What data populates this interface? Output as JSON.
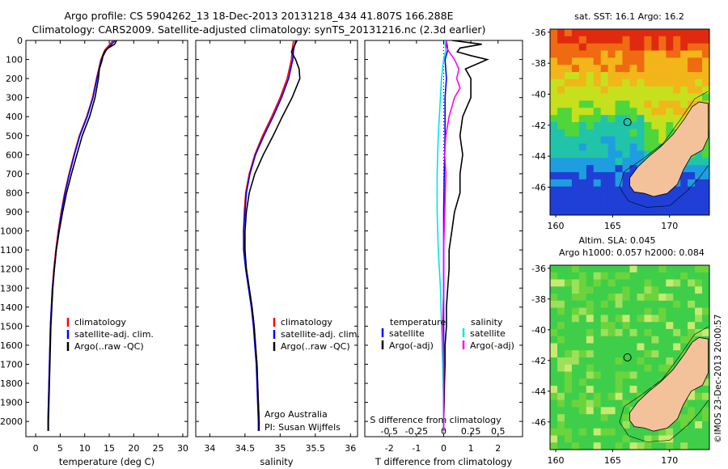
{
  "header": {
    "line1": "Argo profile: CS 5904262_13 18-Dec-2013 20131218_434 41.807S 166.288E",
    "line2": "Climatology: CARS2009. Satellite-adjusted climatology: synTS_20131216.nc (2.3d earlier)"
  },
  "depth_ticks": [
    "0",
    "100",
    "200",
    "300",
    "400",
    "500",
    "600",
    "700",
    "800",
    "900",
    "1000",
    "1100",
    "1200",
    "1300",
    "1400",
    "1500",
    "1600",
    "1700",
    "1800",
    "1900",
    "2000"
  ],
  "credits": {
    "org": "Argo Australia",
    "pi": "PI: Susan Wijffels"
  },
  "stamp": "©IMOS 23-Dec-2013 20:00:57",
  "colors": {
    "climatology": "#ff0000",
    "satellite": "#0000ff",
    "argo": "#000000",
    "sat_sal": "#00e6e6",
    "argo_sal": "#ff00ff",
    "land": "#f4c29a"
  },
  "chart_data": [
    {
      "type": "line",
      "id": "temperature",
      "xlabel": "temperature (deg C)",
      "x_ticks": [
        "0",
        "5",
        "10",
        "15",
        "20",
        "25",
        "30"
      ],
      "xlim": [
        -2,
        31
      ],
      "ylim": [
        2080,
        0
      ],
      "legend": [
        "climatology",
        "satellite-adj. clim.",
        "Argo(..raw -QC)"
      ],
      "series": [
        {
          "name": "climatology",
          "depth": [
            0,
            50,
            100,
            200,
            300,
            400,
            500,
            600,
            700,
            800,
            900,
            1000,
            1100,
            1200,
            1300,
            1400,
            1500,
            1600,
            1700,
            1800,
            1900,
            2000,
            2050
          ],
          "values": [
            15.8,
            14.1,
            13.3,
            12.4,
            11.6,
            10.4,
            8.9,
            7.8,
            6.8,
            5.9,
            5.2,
            4.6,
            4.1,
            3.7,
            3.4,
            3.2,
            3.0,
            2.9,
            2.8,
            2.7,
            2.6,
            2.5,
            2.5
          ]
        },
        {
          "name": "satellite-adj. clim.",
          "depth": [
            0,
            50,
            100,
            200,
            300,
            400,
            500,
            600,
            700,
            800,
            900,
            1000,
            1100,
            1200,
            1300,
            1400,
            1500,
            1600,
            1700,
            1800,
            1900,
            2000,
            2050
          ],
          "values": [
            16.2,
            14.4,
            13.4,
            12.5,
            11.7,
            10.5,
            9.0,
            7.9,
            6.9,
            6.0,
            5.3,
            4.7,
            4.2,
            3.8,
            3.4,
            3.2,
            3.0,
            2.9,
            2.8,
            2.7,
            2.6,
            2.5,
            2.5
          ]
        },
        {
          "name": "Argo(..raw -QC)",
          "depth": [
            0,
            20,
            40,
            60,
            80,
            100,
            150,
            200,
            300,
            400,
            500,
            600,
            700,
            800,
            900,
            1000,
            1100,
            1200,
            1300,
            1400,
            1500,
            1600,
            1700,
            1800,
            1900,
            2000,
            2050
          ],
          "values": [
            16.5,
            16.1,
            14.8,
            14.0,
            13.7,
            13.6,
            13.0,
            12.8,
            12.1,
            11.0,
            9.5,
            8.4,
            7.3,
            6.3,
            5.5,
            4.8,
            4.2,
            3.8,
            3.5,
            3.3,
            3.1,
            3.0,
            2.9,
            2.8,
            2.7,
            2.6,
            2.6
          ]
        }
      ]
    },
    {
      "type": "line",
      "id": "salinity",
      "xlabel": "salinity",
      "x_ticks": [
        "34",
        "34.5",
        "35",
        "35.5",
        "36"
      ],
      "xlim": [
        33.8,
        36.1
      ],
      "ylim": [
        2080,
        0
      ],
      "legend": [
        "climatology",
        "satellite-adj. clim.",
        "Argo(..raw -QC)"
      ],
      "series": [
        {
          "name": "climatology",
          "depth": [
            0,
            50,
            100,
            200,
            300,
            400,
            500,
            600,
            700,
            800,
            900,
            1000,
            1100,
            1200,
            1300,
            1400,
            1500,
            1600,
            1700,
            1800,
            1900,
            2000,
            2050
          ],
          "values": [
            35.19,
            35.17,
            35.16,
            35.1,
            35.0,
            34.88,
            34.75,
            34.64,
            34.56,
            34.51,
            34.49,
            34.48,
            34.49,
            34.52,
            34.56,
            34.6,
            34.63,
            34.65,
            34.67,
            34.68,
            34.69,
            34.7,
            34.7
          ]
        },
        {
          "name": "satellite-adj. clim.",
          "depth": [
            0,
            50,
            100,
            200,
            300,
            400,
            500,
            600,
            700,
            800,
            900,
            1000,
            1100,
            1200,
            1300,
            1400,
            1500,
            1600,
            1700,
            1800,
            1900,
            2000,
            2050
          ],
          "values": [
            35.22,
            35.19,
            35.18,
            35.12,
            35.02,
            34.9,
            34.77,
            34.65,
            34.57,
            34.52,
            34.5,
            34.48,
            34.48,
            34.51,
            34.55,
            34.59,
            34.62,
            34.64,
            34.66,
            34.67,
            34.68,
            34.69,
            34.69
          ]
        },
        {
          "name": "Argo(..raw -QC)",
          "depth": [
            0,
            30,
            60,
            100,
            150,
            200,
            300,
            400,
            500,
            600,
            700,
            800,
            900,
            1000,
            1100,
            1200,
            1300,
            1400,
            1500,
            1600,
            1700,
            1800,
            1900,
            2000,
            2050
          ],
          "values": [
            35.24,
            35.2,
            35.16,
            35.22,
            35.27,
            35.28,
            35.17,
            35.03,
            34.9,
            34.76,
            34.64,
            34.56,
            34.52,
            34.5,
            34.5,
            34.52,
            34.56,
            34.6,
            34.63,
            34.65,
            34.67,
            34.68,
            34.69,
            34.7,
            34.7
          ]
        }
      ]
    },
    {
      "type": "line",
      "id": "differences",
      "xlabel": "T difference from climatology",
      "x2label": "S difference from climatology",
      "x_ticks": [
        "-2",
        "-1",
        "0",
        "1",
        "2"
      ],
      "x2_ticks": [
        "-0.5",
        "-0.25",
        "0",
        "0.25",
        "0.5"
      ],
      "xlim": [
        -2.9,
        2.9
      ],
      "ylim": [
        2080,
        0
      ],
      "legend_t": [
        "temperature",
        "satellite",
        "Argo(-adj)"
      ],
      "legend_s": [
        "salinity",
        "satellite",
        "Argo(-adj)"
      ],
      "series": [
        {
          "name": "satellite",
          "depth": [
            0,
            50,
            100,
            200,
            300,
            500,
            700,
            900,
            1100,
            1300,
            1500,
            1700,
            1900,
            2050
          ],
          "values": [
            0.1,
            0.15,
            0.05,
            0.1,
            0.05,
            0.05,
            0.02,
            0.0,
            0.0,
            0.0,
            0.0,
            0.0,
            0.0,
            0.0
          ]
        },
        {
          "name": "Argo(-adj)",
          "depth": [
            0,
            20,
            40,
            60,
            80,
            100,
            150,
            200,
            300,
            400,
            500,
            600,
            700,
            800,
            900,
            1000,
            1100,
            1200,
            1300,
            1400,
            1500,
            1600,
            1700,
            1800,
            1900,
            2000,
            2050
          ],
          "values": [
            0.3,
            1.4,
            0.6,
            0.5,
            1.0,
            1.6,
            0.8,
            1.0,
            1.0,
            0.7,
            0.6,
            0.7,
            0.6,
            0.6,
            0.4,
            0.3,
            0.2,
            0.2,
            0.15,
            0.1,
            0.1,
            0.05,
            0.05,
            0.03,
            0.02,
            0.0,
            0.0
          ]
        },
        {
          "name": "satellite",
          "depth": [
            0,
            50,
            100,
            200,
            300,
            500,
            700,
            900,
            1100,
            1300,
            1500,
            1700,
            1900,
            2050
          ],
          "values": [
            0.01,
            0.02,
            0.0,
            -0.02,
            -0.03,
            -0.05,
            -0.06,
            -0.06,
            -0.05,
            -0.03,
            -0.02,
            -0.01,
            0.0,
            0.0
          ]
        },
        {
          "name": "Argo(-adj)",
          "depth": [
            0,
            30,
            60,
            100,
            150,
            200,
            250,
            300,
            400,
            500,
            600,
            700,
            900,
            1100,
            1300,
            1500,
            1700,
            1900,
            2050
          ],
          "values": [
            0.03,
            0.02,
            0.05,
            0.1,
            0.14,
            0.12,
            0.15,
            0.1,
            0.05,
            0.02,
            0.01,
            0.02,
            0.01,
            0.0,
            0.0,
            -0.01,
            0.0,
            0.0,
            0.0
          ]
        }
      ]
    },
    {
      "type": "heatmap",
      "id": "sst-map",
      "title": "sat. SST: 16.1  Argo: 16.2",
      "x_ticks": [
        "160",
        "165",
        "170"
      ],
      "y_ticks": [
        "-36",
        "-38",
        "-40",
        "-42",
        "-44",
        "-46"
      ],
      "xlim": [
        159.5,
        173.5
      ],
      "ylim": [
        -47.8,
        -35.8
      ],
      "float_position": {
        "lon": 166.3,
        "lat": -41.8
      }
    },
    {
      "type": "heatmap",
      "id": "sla-map",
      "title": "Altim. SLA: 0.045",
      "subtitle": "Argo h1000: 0.057  h2000: 0.084",
      "x_ticks": [
        "160",
        "165",
        "170"
      ],
      "y_ticks": [
        "-36",
        "-38",
        "-40",
        "-42",
        "-44",
        "-46"
      ],
      "xlim": [
        159.5,
        173.5
      ],
      "ylim": [
        -47.8,
        -35.8
      ],
      "float_position": {
        "lon": 166.3,
        "lat": -41.8
      }
    }
  ]
}
